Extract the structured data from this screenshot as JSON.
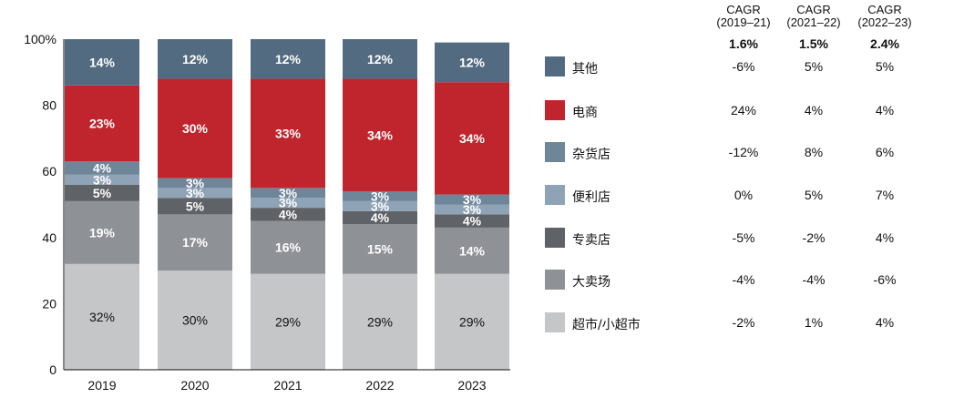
{
  "chart_data": {
    "type": "bar",
    "stacked": true,
    "categories": [
      "2019",
      "2020",
      "2021",
      "2022",
      "2023"
    ],
    "ylim": [
      0,
      100
    ],
    "y_ticks": [
      "0",
      "20",
      "40",
      "60",
      "80",
      "100%"
    ],
    "series": [
      {
        "name": "超市/小超市",
        "color": "#c5c6c8",
        "label_color": "#111111",
        "values": [
          32,
          30,
          29,
          29,
          29
        ],
        "labels": [
          "32%",
          "30%",
          "29%",
          "29%",
          "29%"
        ]
      },
      {
        "name": "大卖场",
        "color": "#8e9196",
        "label_color": "#ffffff",
        "values": [
          19,
          17,
          16,
          15,
          14
        ],
        "labels": [
          "19%",
          "17%",
          "16%",
          "15%",
          "14%"
        ]
      },
      {
        "name": "专卖店",
        "color": "#5f6266",
        "label_color": "#ffffff",
        "values": [
          5,
          5,
          4,
          4,
          4
        ],
        "labels": [
          "5%",
          "5%",
          "4%",
          "4%",
          "4%"
        ]
      },
      {
        "name": "便利店",
        "color": "#8fa3b6",
        "label_color": "#ffffff",
        "values": [
          3,
          3,
          3,
          3,
          3
        ],
        "labels": [
          "3%",
          "3%",
          "3%",
          "3%",
          "3%"
        ]
      },
      {
        "name": "杂货店",
        "color": "#6f8699",
        "label_color": "#ffffff",
        "values": [
          4,
          3,
          3,
          3,
          3
        ],
        "labels": [
          "4%",
          "3%",
          "3%",
          "3%",
          "3%"
        ]
      },
      {
        "name": "电商",
        "color": "#c0252e",
        "label_color": "#ffffff",
        "values": [
          23,
          30,
          33,
          34,
          34
        ],
        "labels": [
          "23%",
          "30%",
          "33%",
          "34%",
          "34%"
        ]
      },
      {
        "name": "其他",
        "color": "#536b80",
        "label_color": "#ffffff",
        "values": [
          14,
          12,
          12,
          12,
          12
        ],
        "labels": [
          "14%",
          "12%",
          "12%",
          "12%",
          "12%"
        ]
      }
    ]
  },
  "cagr": {
    "headers": [
      {
        "line1": "CAGR",
        "line2": "(2019–21)"
      },
      {
        "line1": "CAGR",
        "line2": "(2021–22)"
      },
      {
        "line1": "CAGR",
        "line2": "(2022–23)"
      }
    ],
    "totals": [
      "1.6%",
      "1.5%",
      "2.4%"
    ]
  },
  "legend": [
    {
      "label": "其他",
      "color": "#536b80",
      "cagr": [
        "-6%",
        "5%",
        "5%"
      ]
    },
    {
      "label": "电商",
      "color": "#c0252e",
      "cagr": [
        "24%",
        "4%",
        "4%"
      ]
    },
    {
      "label": "杂货店",
      "color": "#6f8699",
      "cagr": [
        "-12%",
        "8%",
        "6%"
      ]
    },
    {
      "label": "便利店",
      "color": "#8fa3b6",
      "cagr": [
        "0%",
        "5%",
        "7%"
      ]
    },
    {
      "label": "专卖店",
      "color": "#5f6266",
      "cagr": [
        "-5%",
        "-2%",
        "4%"
      ]
    },
    {
      "label": "大卖场",
      "color": "#8e9196",
      "cagr": [
        "-4%",
        "-4%",
        "-6%"
      ]
    },
    {
      "label": "超市/小超市",
      "color": "#c5c6c8",
      "cagr": [
        "-2%",
        "1%",
        "4%"
      ]
    }
  ]
}
